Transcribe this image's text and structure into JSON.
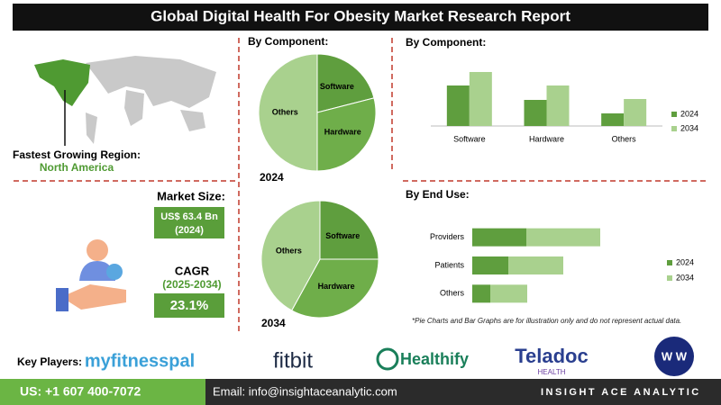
{
  "title": "Global Digital Health For Obesity Market Research Report",
  "region_label": "Fastest Growing Region:",
  "region": "North America",
  "market_size_label": "Market Size:",
  "market_size_value": "US$ 63.4 Bn",
  "market_size_year": "(2024)",
  "cagr_label": "CAGR",
  "cagr_period": "(2025-2034)",
  "cagr_value": "23.1%",
  "footnote": "*Pie Charts and Bar Graphs are for illustration only and do not represent actual data.",
  "key_players_label": "Key Players:",
  "key_players": [
    "myfitnesspal",
    "fitbit",
    "Healthify",
    "Teladoc",
    "HEALTH",
    "W W"
  ],
  "phone": "US: +1 607 400-7072",
  "email": "Email: info@insightaceanalytic.com",
  "brand": "INSIGHT ACE ANALYTIC",
  "chart_data": [
    {
      "type": "pie",
      "title": "By Component:",
      "label": "2024",
      "categories": [
        "Software",
        "Hardware",
        "Others"
      ],
      "values": [
        21,
        29,
        50
      ],
      "colors": [
        "#5f9e3e",
        "#6fae4a",
        "#a9d18e"
      ]
    },
    {
      "type": "pie",
      "label": "2034",
      "categories": [
        "Software",
        "Hardware",
        "Others"
      ],
      "values": [
        25,
        33,
        42
      ],
      "colors": [
        "#5f9e3e",
        "#6fae4a",
        "#a9d18e"
      ]
    },
    {
      "type": "bar",
      "title": "By Component:",
      "categories": [
        "Software",
        "Hardware",
        "Others"
      ],
      "series": [
        {
          "name": "2024",
          "color": "#5f9e3e",
          "values": [
            45,
            29,
            14
          ]
        },
        {
          "name": "2034",
          "color": "#a9d18e",
          "values": [
            60,
            45,
            30
          ]
        }
      ],
      "ylim": [
        0,
        75
      ],
      "legend": "right"
    },
    {
      "type": "barh",
      "title": "By End Use:",
      "stacked": true,
      "categories": [
        "Providers",
        "Patients",
        "Others"
      ],
      "series": [
        {
          "name": "2024",
          "color": "#5f9e3e",
          "values": [
            60,
            40,
            20
          ]
        },
        {
          "name": "2034",
          "color": "#a9d18e",
          "values": [
            82,
            61,
            41
          ]
        }
      ],
      "xlim": [
        0,
        150
      ],
      "legend": "right"
    }
  ]
}
